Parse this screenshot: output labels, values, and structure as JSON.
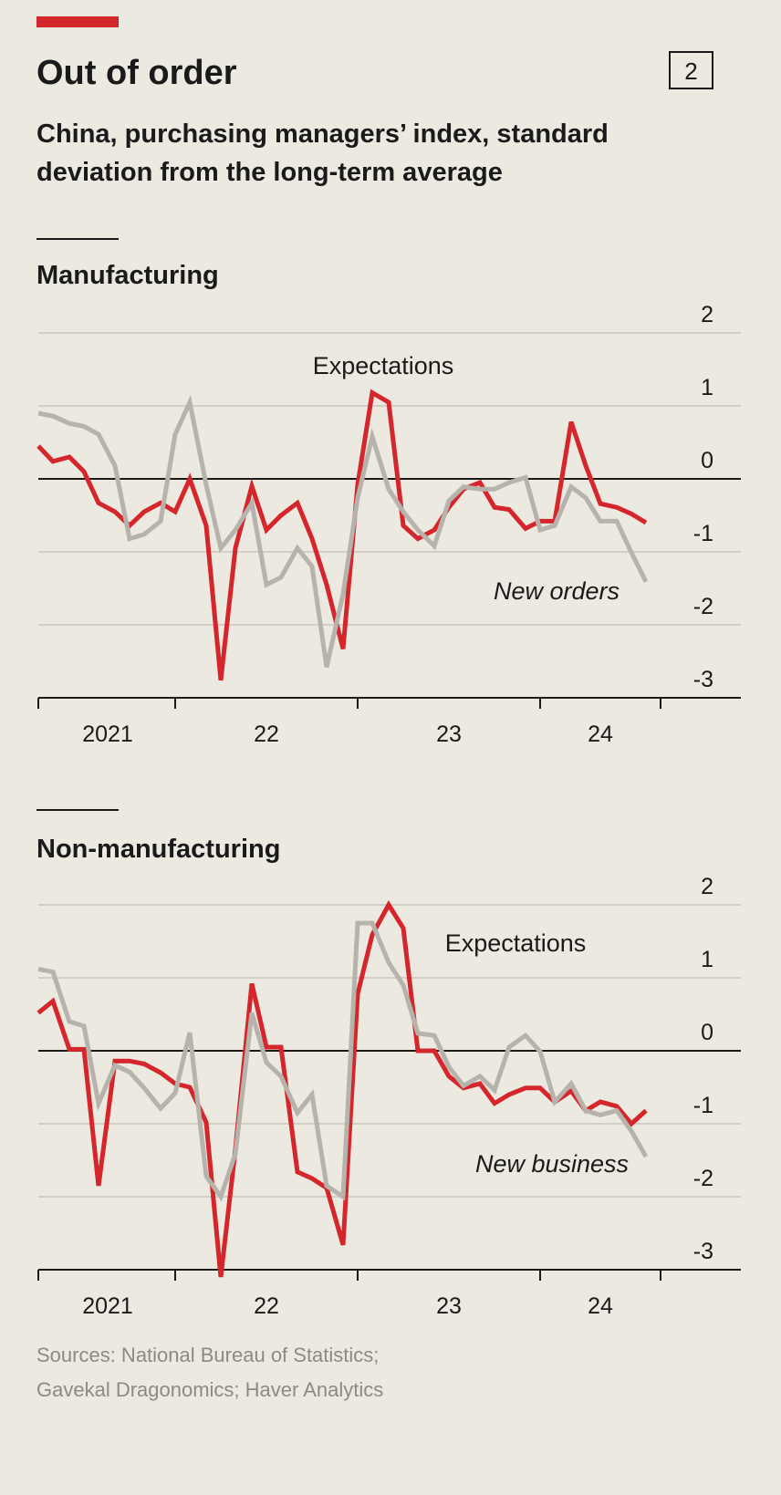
{
  "header": {
    "title": "Out of order",
    "badge": "2",
    "subtitle": [
      "China, purchasing managers’ index, standard",
      "deviation from the long-term average"
    ]
  },
  "chart_data": [
    {
      "type": "line",
      "title": "Manufacturing",
      "x": [
        2021.25,
        2021.33,
        2021.42,
        2021.5,
        2021.58,
        2021.67,
        2021.75,
        2021.83,
        2021.92,
        2022.0,
        2022.08,
        2022.17,
        2022.25,
        2022.33,
        2022.42,
        2022.5,
        2022.58,
        2022.67,
        2022.75,
        2022.83,
        2022.92,
        2023.0,
        2023.08,
        2023.17,
        2023.25,
        2023.33,
        2023.42,
        2023.5,
        2023.58,
        2023.67,
        2023.75,
        2023.83,
        2023.92,
        2024.0,
        2024.08,
        2024.17,
        2024.25,
        2024.33,
        2024.42,
        2024.5,
        2024.58
      ],
      "series": [
        {
          "name": "Expectations",
          "color": "#b5b3ab",
          "values": [
            0.9,
            0.86,
            0.76,
            0.72,
            0.61,
            0.18,
            -0.82,
            -0.76,
            -0.58,
            0.61,
            1.05,
            -0.08,
            -0.95,
            -0.7,
            -0.33,
            -1.45,
            -1.35,
            -0.95,
            -1.2,
            -2.58,
            -1.58,
            -0.26,
            0.58,
            -0.14,
            -0.45,
            -0.7,
            -0.92,
            -0.3,
            -0.11,
            -0.14,
            -0.14,
            -0.05,
            0.02,
            -0.7,
            -0.64,
            -0.11,
            -0.26,
            -0.58,
            -0.58,
            -1.01,
            -1.41
          ]
        },
        {
          "name": "New orders",
          "color": "#d5262b",
          "values": [
            0.45,
            0.24,
            0.3,
            0.1,
            -0.33,
            -0.45,
            -0.64,
            -0.45,
            -0.33,
            -0.45,
            0,
            -0.64,
            -2.76,
            -0.95,
            -0.1,
            -0.7,
            -0.5,
            -0.33,
            -0.82,
            -1.45,
            -2.33,
            -0.08,
            1.18,
            1.05,
            -0.64,
            -0.82,
            -0.7,
            -0.39,
            -0.14,
            -0.05,
            -0.39,
            -0.42,
            -0.68,
            -0.58,
            -0.58,
            0.78,
            0.18,
            -0.34,
            -0.39,
            -0.48,
            -0.6
          ]
        }
      ],
      "xlim": [
        2021.25,
        2025.1
      ],
      "ylim": [
        -3,
        2
      ],
      "yticks": [
        -3,
        -2,
        -1,
        0,
        1,
        2
      ],
      "xticks": [
        {
          "value": 2021.63,
          "label": "2021"
        },
        {
          "value": 2022.5,
          "label": "22"
        },
        {
          "value": 2023.5,
          "label": "23"
        },
        {
          "value": 2024.33,
          "label": "24"
        }
      ],
      "xtick_marks": [
        2021.25,
        2022,
        2023,
        2024,
        2024.66
      ]
    },
    {
      "type": "line",
      "title": "Non-manufacturing",
      "x": [
        2021.25,
        2021.33,
        2021.42,
        2021.5,
        2021.58,
        2021.67,
        2021.75,
        2021.83,
        2021.92,
        2022.0,
        2022.08,
        2022.17,
        2022.25,
        2022.33,
        2022.42,
        2022.5,
        2022.58,
        2022.67,
        2022.75,
        2022.83,
        2022.92,
        2023.0,
        2023.08,
        2023.17,
        2023.25,
        2023.33,
        2023.42,
        2023.5,
        2023.58,
        2023.67,
        2023.75,
        2023.83,
        2023.92,
        2024.0,
        2024.08,
        2024.17,
        2024.25,
        2024.33,
        2024.42,
        2024.5,
        2024.58
      ],
      "series": [
        {
          "name": "Expectations",
          "color": "#b5b3ab",
          "values": [
            1.12,
            1.08,
            0.4,
            0.34,
            -0.72,
            -0.2,
            -0.29,
            -0.51,
            -0.79,
            -0.58,
            0.25,
            -1.72,
            -2.0,
            -1.41,
            0.52,
            -0.16,
            -0.35,
            -0.85,
            -0.6,
            -1.85,
            -2.0,
            1.75,
            1.75,
            1.21,
            0.9,
            0.24,
            0.21,
            -0.22,
            -0.48,
            -0.35,
            -0.54,
            0.05,
            0.21,
            -0.01,
            -0.7,
            -0.45,
            -0.82,
            -0.88,
            -0.82,
            -1.1,
            -1.45
          ]
        },
        {
          "name": "New business",
          "color": "#d5262b",
          "values": [
            0.52,
            0.68,
            0.02,
            0.02,
            -1.85,
            -0.14,
            -0.14,
            -0.18,
            -0.3,
            -0.45,
            -0.5,
            -0.98,
            -3.1,
            -1.35,
            0.92,
            0.05,
            0.05,
            -1.66,
            -1.75,
            -1.88,
            -2.66,
            0.78,
            1.59,
            2.0,
            1.68,
            0,
            0,
            -0.35,
            -0.51,
            -0.45,
            -0.72,
            -0.6,
            -0.51,
            -0.51,
            -0.7,
            -0.55,
            -0.82,
            -0.7,
            -0.76,
            -1.0,
            -0.82
          ]
        }
      ],
      "xlim": [
        2021.25,
        2025.1
      ],
      "ylim": [
        -3,
        2
      ],
      "yticks": [
        -3,
        -2,
        -1,
        0,
        1,
        2
      ],
      "xticks": [
        {
          "value": 2021.63,
          "label": "2021"
        },
        {
          "value": 2022.5,
          "label": "22"
        },
        {
          "value": 2023.5,
          "label": "23"
        },
        {
          "value": 2024.33,
          "label": "24"
        }
      ],
      "xtick_marks": [
        2021.25,
        2022,
        2023,
        2024,
        2024.66
      ]
    }
  ],
  "footer": {
    "source": [
      "Sources: National Bureau of Statistics;",
      "Gavekal Dragonomics; Haver Analytics"
    ]
  }
}
